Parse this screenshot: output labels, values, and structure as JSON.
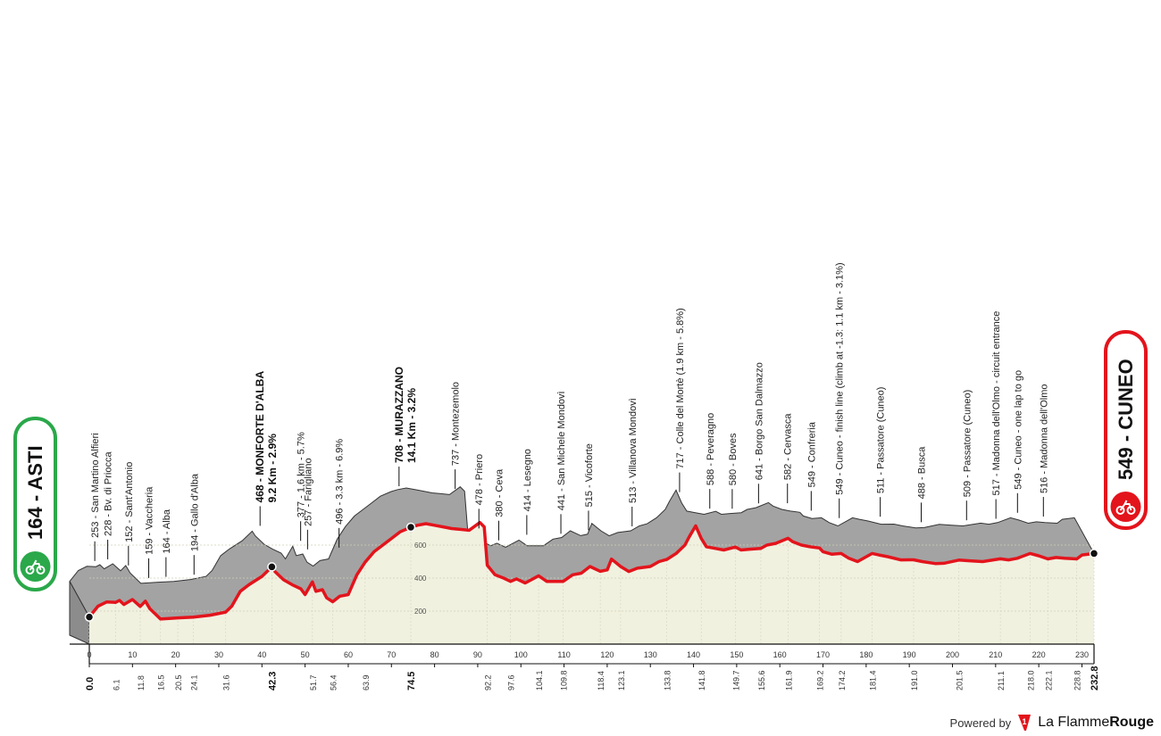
{
  "chart_data": {
    "type": "area",
    "start": {
      "label": "164 - ASTI",
      "alt": 164
    },
    "finish": {
      "label": "549 - CUNEO",
      "alt": 549
    },
    "total_km": 232.8,
    "x_ticks": [
      0,
      10,
      20,
      30,
      40,
      50,
      60,
      70,
      80,
      90,
      100,
      110,
      120,
      130,
      140,
      150,
      160,
      170,
      180,
      190,
      200,
      210,
      220,
      230
    ],
    "y_ticks": [
      200,
      400,
      600
    ],
    "profile": [
      [
        0,
        164
      ],
      [
        2,
        230
      ],
      [
        4,
        255
      ],
      [
        6.1,
        253
      ],
      [
        7,
        265
      ],
      [
        8,
        240
      ],
      [
        10,
        270
      ],
      [
        11.8,
        228
      ],
      [
        13,
        260
      ],
      [
        14,
        215
      ],
      [
        16.5,
        152
      ],
      [
        20.5,
        159
      ],
      [
        24.1,
        164
      ],
      [
        28,
        175
      ],
      [
        31.6,
        194
      ],
      [
        33,
        230
      ],
      [
        35,
        320
      ],
      [
        37,
        360
      ],
      [
        40,
        410
      ],
      [
        42.3,
        468
      ],
      [
        43,
        440
      ],
      [
        45,
        390
      ],
      [
        47,
        360
      ],
      [
        49,
        335
      ],
      [
        50,
        300
      ],
      [
        51.7,
        377
      ],
      [
        52.5,
        320
      ],
      [
        54,
        330
      ],
      [
        55,
        280
      ],
      [
        56.4,
        257
      ],
      [
        58,
        290
      ],
      [
        60,
        300
      ],
      [
        62,
        420
      ],
      [
        63.9,
        496
      ],
      [
        66,
        560
      ],
      [
        68,
        600
      ],
      [
        70,
        640
      ],
      [
        72,
        680
      ],
      [
        74.5,
        708
      ],
      [
        76,
        720
      ],
      [
        78,
        730
      ],
      [
        80,
        720
      ],
      [
        82,
        710
      ],
      [
        84,
        700
      ],
      [
        86,
        695
      ],
      [
        88,
        690
      ],
      [
        90.5,
        737
      ],
      [
        91.5,
        710
      ],
      [
        92.2,
        478
      ],
      [
        94,
        420
      ],
      [
        96,
        400
      ],
      [
        97.6,
        380
      ],
      [
        99,
        395
      ],
      [
        101,
        370
      ],
      [
        104.1,
        414
      ],
      [
        106,
        380
      ],
      [
        109.8,
        380
      ],
      [
        112,
        420
      ],
      [
        114,
        430
      ],
      [
        116,
        470
      ],
      [
        118.4,
        441
      ],
      [
        120,
        450
      ],
      [
        121,
        515
      ],
      [
        123.1,
        470
      ],
      [
        125,
        440
      ],
      [
        127,
        460
      ],
      [
        130,
        470
      ],
      [
        132,
        500
      ],
      [
        133.8,
        513
      ],
      [
        136,
        550
      ],
      [
        138,
        600
      ],
      [
        139,
        650
      ],
      [
        140.5,
        717
      ],
      [
        141.8,
        640
      ],
      [
        143,
        590
      ],
      [
        145,
        580
      ],
      [
        147,
        570
      ],
      [
        149.7,
        588
      ],
      [
        151,
        570
      ],
      [
        153,
        575
      ],
      [
        155.6,
        580
      ],
      [
        157,
        600
      ],
      [
        159,
        610
      ],
      [
        161.9,
        641
      ],
      [
        163,
        620
      ],
      [
        165,
        600
      ],
      [
        167,
        590
      ],
      [
        169.2,
        582
      ],
      [
        170,
        560
      ],
      [
        172,
        545
      ],
      [
        174.2,
        549
      ],
      [
        176,
        520
      ],
      [
        178,
        500
      ],
      [
        181.4,
        549
      ],
      [
        183,
        540
      ],
      [
        185,
        530
      ],
      [
        188,
        510
      ],
      [
        191,
        511
      ],
      [
        193,
        500
      ],
      [
        196,
        488
      ],
      [
        198,
        490
      ],
      [
        201.5,
        509
      ],
      [
        204,
        505
      ],
      [
        207,
        500
      ],
      [
        211.1,
        517
      ],
      [
        213,
        510
      ],
      [
        215,
        520
      ],
      [
        218,
        549
      ],
      [
        220,
        535
      ],
      [
        222.1,
        516
      ],
      [
        224,
        525
      ],
      [
        226,
        520
      ],
      [
        228.8,
        516
      ],
      [
        230,
        540
      ],
      [
        232.8,
        549
      ]
    ],
    "peaks": [
      {
        "km": 4,
        "label": "253 - San Martino Alfieri"
      },
      {
        "km": 7,
        "label": "228 - Bv. di Priocca"
      },
      {
        "km": 11.8,
        "label": "152 - Sant'Antonio"
      },
      {
        "km": 16.5,
        "label": "159 - Vaccheria"
      },
      {
        "km": 20.5,
        "label": "164 - Alba"
      },
      {
        "km": 27,
        "label": "194 - Gallo d'Alba"
      },
      {
        "km": 42.3,
        "label": "468 - MONFORTE D'ALBA",
        "sub": "9.2 Km - 2.9%",
        "bold": true
      },
      {
        "km": 51.7,
        "label": "377 - 1.6 km - 5.7%"
      },
      {
        "km": 53.3,
        "label": "257 - Farigliano"
      },
      {
        "km": 60.6,
        "label": "496 - 3.3 km - 6.9%"
      },
      {
        "km": 74.5,
        "label": "708 - MURAZZANO",
        "sub": "14.1 Km - 3.2%",
        "bold": true
      },
      {
        "km": 87.5,
        "label": "737 - Montezemolo"
      },
      {
        "km": 93,
        "label": "478 - Priero"
      },
      {
        "km": 97.6,
        "label": "380 - Ceva"
      },
      {
        "km": 104.1,
        "label": "414 - Lesegno"
      },
      {
        "km": 112,
        "label": "441 - San Michele Mondovì"
      },
      {
        "km": 118.4,
        "label": "515 - Vicoforte"
      },
      {
        "km": 128.5,
        "label": "513 - Villanova Mondovì"
      },
      {
        "km": 139.5,
        "label": "717 - Colle del Mortè (1.9 km - 5.8%)"
      },
      {
        "km": 146.5,
        "label": "588 - Peveragno"
      },
      {
        "km": 151.7,
        "label": "580 - Boves"
      },
      {
        "km": 157.8,
        "label": "641 - Borgo San Dalmazzo"
      },
      {
        "km": 164.5,
        "label": "582 - Cervasca"
      },
      {
        "km": 170,
        "label": "549 - Confreria"
      },
      {
        "km": 176.5,
        "label": "549 - Cuneo - finish line (climb at -1.3: 1.1 km - 3.1%)"
      },
      {
        "km": 186,
        "label": "511 - Passatore (Cuneo)"
      },
      {
        "km": 195.5,
        "label": "488 - Busca"
      },
      {
        "km": 206,
        "label": "509 - Passatore (Cuneo)"
      },
      {
        "km": 212.8,
        "label": "517 - Madonna dell'Olmo - circuit entrance"
      },
      {
        "km": 217.8,
        "label": "549 - Cuneo - one lap to go"
      },
      {
        "km": 223.8,
        "label": "516 - Madonna dell'Olmo"
      }
    ],
    "km_labels": [
      {
        "km": 0,
        "label": "0.0",
        "bold": true
      },
      {
        "km": 6.1,
        "label": "6.1"
      },
      {
        "km": 11.8,
        "label": "11.8"
      },
      {
        "km": 16.5,
        "label": "16.5"
      },
      {
        "km": 20.5,
        "label": "20.5"
      },
      {
        "km": 24.1,
        "label": "24.1"
      },
      {
        "km": 31.6,
        "label": "31.6"
      },
      {
        "km": 42.3,
        "label": "42.3",
        "bold": true
      },
      {
        "km": 51.7,
        "label": "51.7"
      },
      {
        "km": 56.4,
        "label": "56.4"
      },
      {
        "km": 63.9,
        "label": "63.9"
      },
      {
        "km": 74.5,
        "label": "74.5",
        "bold": true
      },
      {
        "km": 92.2,
        "label": "92.2"
      },
      {
        "km": 97.6,
        "label": "97.6"
      },
      {
        "km": 104.1,
        "label": "104.1"
      },
      {
        "km": 109.8,
        "label": "109.8"
      },
      {
        "km": 118.4,
        "label": "118.4"
      },
      {
        "km": 123.1,
        "label": "123.1"
      },
      {
        "km": 133.8,
        "label": "133.8"
      },
      {
        "km": 141.8,
        "label": "141.8"
      },
      {
        "km": 149.7,
        "label": "149.7"
      },
      {
        "km": 155.6,
        "label": "155.6"
      },
      {
        "km": 161.9,
        "label": "161.9"
      },
      {
        "km": 169.2,
        "label": "169.2"
      },
      {
        "km": 174.2,
        "label": "174.2"
      },
      {
        "km": 181.4,
        "label": "181.4"
      },
      {
        "km": 191.0,
        "label": "191.0"
      },
      {
        "km": 201.5,
        "label": "201.5"
      },
      {
        "km": 211.1,
        "label": "211.1"
      },
      {
        "km": 218.0,
        "label": "218.0"
      },
      {
        "km": 222.1,
        "label": "222.1"
      },
      {
        "km": 228.8,
        "label": "228.8"
      },
      {
        "km": 232.8,
        "label": "232.8",
        "bold": true
      }
    ],
    "colors": {
      "route": "#e3141c",
      "shadow": "#a3a3a3",
      "fill": "#f1f1e0",
      "start_badge": "#2aa84a",
      "finish_badge": "#e3141c"
    }
  },
  "footer": {
    "powered": "Powered by",
    "brand_light": "La Flamme",
    "brand_bold": "Rouge"
  }
}
